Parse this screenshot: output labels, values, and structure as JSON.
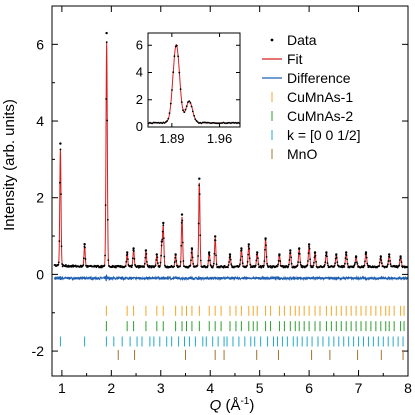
{
  "chart_data": {
    "type": "scatter",
    "xlabel": "Q (Å⁻¹)",
    "ylabel": "Intensity (arb. units)",
    "xlim": [
      0.8,
      8.0
    ],
    "ylim": [
      -2.65,
      7.0
    ],
    "x_ticks": [
      1,
      2,
      3,
      4,
      5,
      6,
      7,
      8
    ],
    "y_ticks": [
      -2,
      0,
      2,
      4,
      6
    ],
    "background": 0.2,
    "difference_offset": -0.1,
    "legend_position": "top-right",
    "series": [
      {
        "name": "Data",
        "style": "points",
        "color": "#000000"
      },
      {
        "name": "Fit",
        "style": "line",
        "color": "#d62020"
      },
      {
        "name": "Difference",
        "style": "line",
        "color": "#1f5fb0"
      },
      {
        "name": "CuMnAs-1",
        "style": "ticks",
        "color": "#f5a623"
      },
      {
        "name": "CuMnAs-2",
        "style": "ticks",
        "color": "#2e9e2e"
      },
      {
        "name": "k = [0 0 1/2]",
        "style": "ticks",
        "color": "#22a9c9"
      },
      {
        "name": "MnO",
        "style": "ticks",
        "color": "#a07030"
      }
    ],
    "peaks": [
      {
        "q": 0.97,
        "height": 3.05,
        "width": 0.012
      },
      {
        "q": 1.46,
        "height": 0.55,
        "width": 0.012
      },
      {
        "q": 1.905,
        "height": 5.85,
        "width": 0.013
      },
      {
        "q": 2.32,
        "height": 0.35,
        "width": 0.013
      },
      {
        "q": 2.45,
        "height": 0.45,
        "width": 0.013
      },
      {
        "q": 2.7,
        "height": 0.4,
        "width": 0.013
      },
      {
        "q": 2.92,
        "height": 0.3,
        "width": 0.013
      },
      {
        "q": 3.02,
        "height": 0.55,
        "width": 0.013
      },
      {
        "q": 3.05,
        "height": 1.05,
        "width": 0.013
      },
      {
        "q": 3.3,
        "height": 0.3,
        "width": 0.013
      },
      {
        "q": 3.43,
        "height": 1.3,
        "width": 0.013
      },
      {
        "q": 3.63,
        "height": 0.45,
        "width": 0.013
      },
      {
        "q": 3.78,
        "height": 2.2,
        "width": 0.013
      },
      {
        "q": 3.98,
        "height": 0.35,
        "width": 0.013
      },
      {
        "q": 4.1,
        "height": 0.75,
        "width": 0.013
      },
      {
        "q": 4.4,
        "height": 0.3,
        "width": 0.014
      },
      {
        "q": 4.63,
        "height": 0.45,
        "width": 0.014
      },
      {
        "q": 4.78,
        "height": 0.55,
        "width": 0.014
      },
      {
        "q": 4.95,
        "height": 0.35,
        "width": 0.014
      },
      {
        "q": 5.12,
        "height": 0.7,
        "width": 0.014
      },
      {
        "q": 5.4,
        "height": 0.3,
        "width": 0.014
      },
      {
        "q": 5.62,
        "height": 0.4,
        "width": 0.014
      },
      {
        "q": 5.8,
        "height": 0.45,
        "width": 0.014
      },
      {
        "q": 6.0,
        "height": 0.55,
        "width": 0.014
      },
      {
        "q": 6.12,
        "height": 0.35,
        "width": 0.014
      },
      {
        "q": 6.35,
        "height": 0.35,
        "width": 0.015
      },
      {
        "q": 6.55,
        "height": 0.3,
        "width": 0.015
      },
      {
        "q": 6.75,
        "height": 0.35,
        "width": 0.015
      },
      {
        "q": 6.95,
        "height": 0.25,
        "width": 0.015
      },
      {
        "q": 7.15,
        "height": 0.35,
        "width": 0.015
      },
      {
        "q": 7.45,
        "height": 0.25,
        "width": 0.015
      },
      {
        "q": 7.62,
        "height": 0.3,
        "width": 0.015
      },
      {
        "q": 7.85,
        "height": 0.25,
        "width": 0.015
      }
    ],
    "tick_rows": [
      {
        "name": "CuMnAs-1",
        "color": "#f5a623",
        "y": -0.95,
        "positions": [
          1.9,
          2.32,
          2.45,
          2.7,
          2.92,
          3.05,
          3.3,
          3.43,
          3.52,
          3.63,
          3.78,
          3.98,
          4.1,
          4.22,
          4.4,
          4.52,
          4.63,
          4.78,
          4.87,
          4.95,
          5.12,
          5.22,
          5.4,
          5.5,
          5.62,
          5.72,
          5.8,
          5.9,
          6.0,
          6.12,
          6.22,
          6.35,
          6.45,
          6.55,
          6.65,
          6.75,
          6.85,
          6.95,
          7.05,
          7.15,
          7.25,
          7.35,
          7.45,
          7.55,
          7.62,
          7.72,
          7.85,
          7.92
        ]
      },
      {
        "name": "CuMnAs-2",
        "color": "#2e9e2e",
        "y": -1.35,
        "positions": [
          1.9,
          2.32,
          2.45,
          2.7,
          2.92,
          3.05,
          3.3,
          3.43,
          3.52,
          3.63,
          3.78,
          3.98,
          4.1,
          4.22,
          4.4,
          4.52,
          4.63,
          4.78,
          4.87,
          4.95,
          5.12,
          5.22,
          5.4,
          5.5,
          5.62,
          5.72,
          5.8,
          5.9,
          6.0,
          6.12,
          6.22,
          6.35,
          6.45,
          6.55,
          6.65,
          6.75,
          6.85,
          6.95,
          7.05,
          7.15,
          7.25,
          7.35,
          7.45,
          7.55,
          7.62,
          7.72,
          7.85,
          7.92
        ]
      },
      {
        "name": "k = [0 0 1/2]",
        "color": "#22a9c9",
        "y": -1.75,
        "positions": [
          0.97,
          1.46,
          1.9,
          2.05,
          2.22,
          2.38,
          2.52,
          2.62,
          2.78,
          2.86,
          2.98,
          3.12,
          3.22,
          3.36,
          3.48,
          3.58,
          3.7,
          3.85,
          3.92,
          4.05,
          4.16,
          4.28,
          4.34,
          4.46,
          4.58,
          4.7,
          4.82,
          4.9,
          5.02,
          5.16,
          5.28,
          5.36,
          5.46,
          5.56,
          5.68,
          5.76,
          5.86,
          5.96,
          6.06,
          6.18,
          6.28,
          6.4,
          6.5,
          6.6,
          6.7,
          6.8,
          6.9,
          7.0,
          7.1,
          7.2,
          7.3,
          7.4,
          7.5,
          7.6,
          7.7,
          7.8,
          7.9
        ]
      },
      {
        "name": "MnO",
        "color": "#a07030",
        "y": -2.1,
        "positions": [
          2.14,
          2.47,
          3.5,
          4.1,
          4.28,
          4.94,
          5.38,
          6.05,
          6.42,
          6.98,
          7.46,
          7.9
        ]
      }
    ],
    "inset": {
      "xlim": [
        1.855,
        1.99
      ],
      "ylim": [
        0.0,
        6.9
      ],
      "x_ticks": [
        1.89,
        1.96
      ],
      "x_tick_labels": [
        "1.89",
        "1.96"
      ],
      "y_ticks": [
        0,
        2,
        4,
        6
      ],
      "y_tick_labels": [
        "0",
        "2",
        "4",
        "6"
      ],
      "peaks": [
        {
          "q": 1.8965,
          "height": 5.75,
          "width": 0.0048
        },
        {
          "q": 1.9155,
          "height": 1.6,
          "width": 0.0048
        }
      ],
      "background": 0.3
    }
  }
}
